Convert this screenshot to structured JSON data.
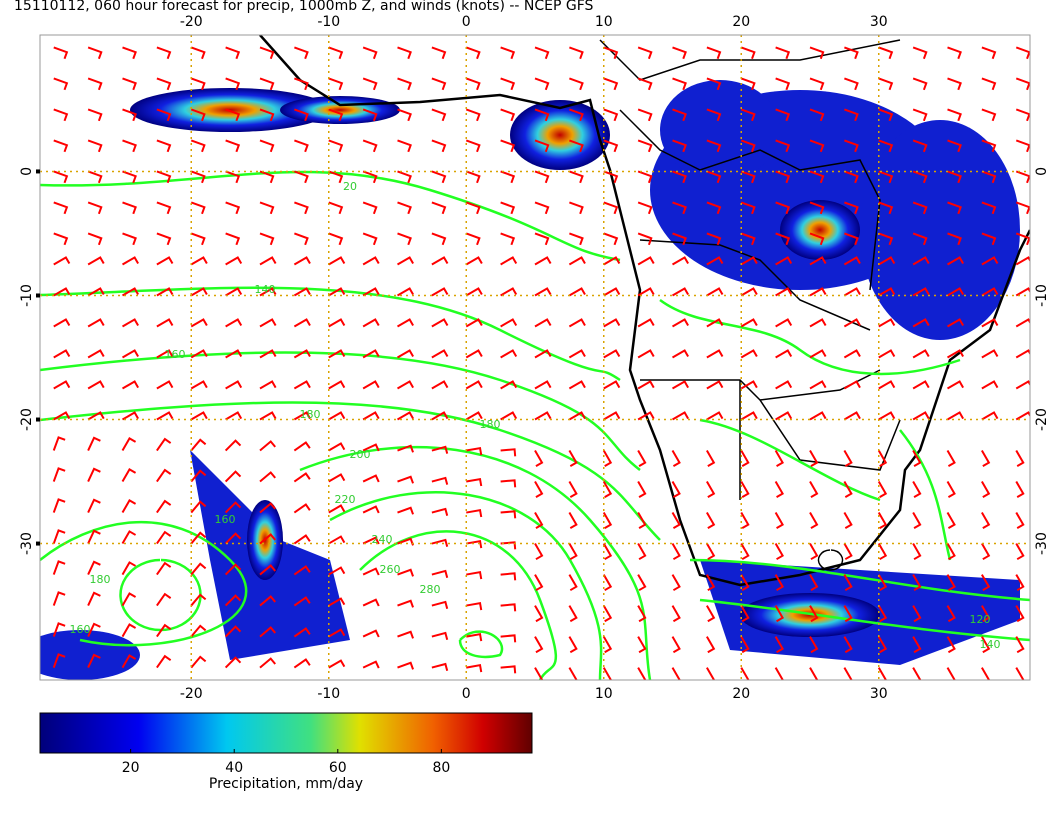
{
  "header": {
    "title": "15110112, 060 hour forecast for precip, 1000mb Z, and winds (knots) -- NCEP GFS"
  },
  "map": {
    "lonlim": [
      -31,
      41
    ],
    "latlim": [
      -41,
      11
    ],
    "lon_ticks": [
      -20,
      -10,
      0,
      10,
      20,
      30
    ],
    "lat_ticks": [
      0,
      -10,
      -20,
      -30
    ],
    "contour_labels": [
      20,
      140,
      160,
      180,
      180,
      200,
      220,
      240,
      260,
      280,
      160,
      180,
      160,
      120,
      140
    ]
  },
  "colorbar": {
    "range": [
      2.5,
      97.5
    ],
    "ticks": [
      20,
      40,
      60,
      80
    ],
    "label": "Precipitation, mm/day"
  }
}
